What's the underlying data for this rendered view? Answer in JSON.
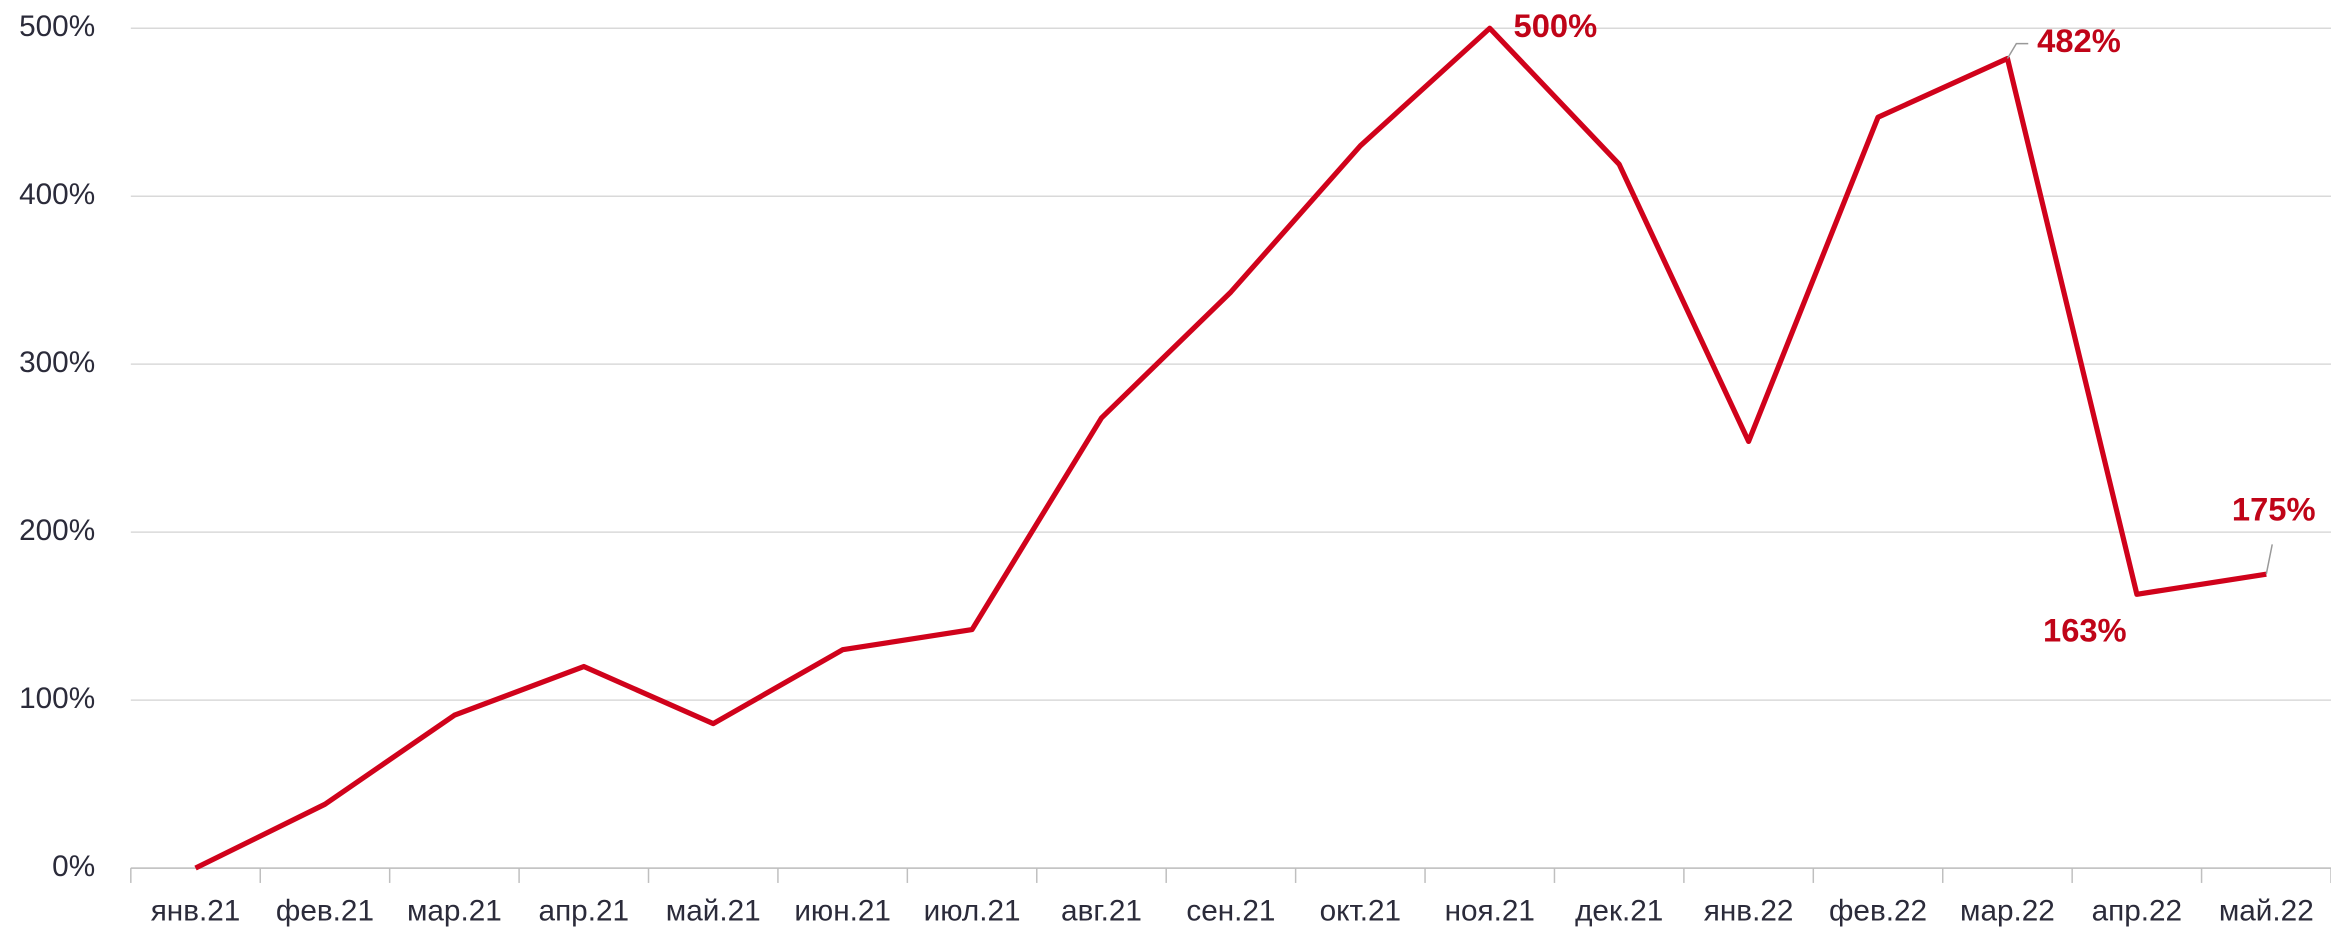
{
  "chart_data": {
    "type": "line",
    "categories": [
      "янв.21",
      "фев.21",
      "мар.21",
      "апр.21",
      "май.21",
      "июн.21",
      "июл.21",
      "авг.21",
      "сен.21",
      "окт.21",
      "ноя.21",
      "дек.21",
      "янв.22",
      "фев.22",
      "мар.22",
      "апр.22",
      "май.22"
    ],
    "series": [
      {
        "color": "#d0021b",
        "values": [
          0,
          38,
          91,
          120,
          86,
          130,
          142,
          268,
          343,
          430,
          500,
          419,
          254,
          447,
          482,
          163,
          175
        ],
        "value_labels": [
          null,
          null,
          null,
          null,
          null,
          null,
          null,
          null,
          null,
          null,
          "500%",
          null,
          null,
          null,
          "482%",
          "163%",
          "175%"
        ]
      }
    ],
    "ylim": [
      0,
      500
    ],
    "yticks": [
      {
        "value": 0,
        "label": "0%"
      },
      {
        "value": 100,
        "label": "100%"
      },
      {
        "value": 200,
        "label": "200%"
      },
      {
        "value": 300,
        "label": "300%"
      },
      {
        "value": 400,
        "label": "400%"
      },
      {
        "value": 500,
        "label": "500%"
      }
    ],
    "grid": true,
    "label_color": "#c00418"
  }
}
